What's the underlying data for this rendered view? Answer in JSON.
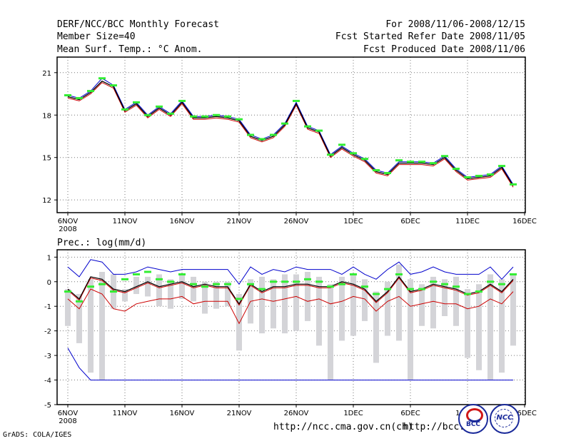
{
  "header": {
    "title": "DERF/NCC/BCC Monthly Forecast",
    "member_size": "Member Size=40",
    "variable": "Mean Surf. Temp.: °C Anom.",
    "period": "For 2008/11/06-2008/12/15",
    "started": "Fcst Started Refer Date 2008/11/05",
    "produced": "Fcst Produced Date 2008/11/06"
  },
  "footer": {
    "grads": "GrADS: COLA/IGES",
    "url1": "http://ncc.cma.gov.cn(ch)",
    "url2": "http://bcc.",
    "logo_bcc": "BCC",
    "logo_ncc": "NCC"
  },
  "colors": {
    "ensemble": "#0000cc",
    "red": "#cc0000",
    "black": "#000000",
    "green": "#33ee33",
    "bar": "#d4d4d8"
  },
  "chart_data": [
    {
      "type": "line",
      "title": "Mean Surf. Temp.: °C Anom.",
      "xlabel": "",
      "ylabel": "",
      "x": [
        "6NOV",
        "7NOV",
        "8NOV",
        "9NOV",
        "10NOV",
        "11NOV",
        "12NOV",
        "13NOV",
        "14NOV",
        "15NOV",
        "16NOV",
        "17NOV",
        "18NOV",
        "19NOV",
        "20NOV",
        "21NOV",
        "22NOV",
        "23NOV",
        "24NOV",
        "25NOV",
        "26NOV",
        "27NOV",
        "28NOV",
        "29NOV",
        "30NOV",
        "1DEC",
        "2DEC",
        "3DEC",
        "4DEC",
        "5DEC",
        "6DEC",
        "7DEC",
        "8DEC",
        "9DEC",
        "10DEC",
        "11DEC",
        "12DEC",
        "13DEC",
        "14DEC",
        "15DEC"
      ],
      "xticks": [
        "6NOV",
        "11NOV",
        "16NOV",
        "21NOV",
        "26NOV",
        "1DEC",
        "6DEC",
        "11DEC",
        "16DEC"
      ],
      "xtick_year": "2008",
      "yticks": [
        12,
        15,
        18,
        21
      ],
      "ylim": [
        11.1,
        22.1
      ],
      "series": [
        {
          "name": "ensemble mean",
          "values": [
            19.3,
            19.1,
            19.6,
            20.4,
            20.0,
            18.3,
            18.8,
            17.9,
            18.5,
            18.0,
            18.9,
            17.8,
            17.8,
            17.9,
            17.8,
            17.6,
            16.5,
            16.2,
            16.5,
            17.3,
            18.8,
            17.1,
            16.8,
            15.1,
            15.7,
            15.2,
            14.8,
            14.0,
            13.8,
            14.6,
            14.6,
            14.6,
            14.5,
            15.0,
            14.1,
            13.5,
            13.6,
            13.7,
            14.3,
            13.0
          ]
        },
        {
          "name": "ensemble spread",
          "values": [
            19.2,
            19.0,
            19.5,
            20.3,
            19.9,
            18.2,
            18.7,
            17.8,
            18.4,
            17.9,
            18.8,
            17.7,
            17.7,
            17.8,
            17.7,
            17.5,
            16.4,
            16.1,
            16.4,
            17.2,
            18.7,
            17.0,
            16.7,
            15.0,
            15.6,
            15.1,
            14.7,
            13.9,
            13.7,
            14.5,
            14.5,
            14.5,
            14.4,
            14.9,
            14.0,
            13.4,
            13.5,
            13.6,
            14.2,
            12.9
          ]
        },
        {
          "name": "observed",
          "values": [
            19.4,
            19.2,
            19.7,
            20.6,
            20.1,
            18.4,
            18.9,
            18.0,
            18.6,
            18.1,
            19.0,
            17.9,
            17.9,
            18.0,
            17.9,
            17.7,
            16.6,
            16.3,
            16.6,
            17.4,
            18.9,
            17.2,
            16.9,
            15.2,
            15.8,
            15.3,
            14.9,
            14.1,
            13.9,
            14.7,
            14.7,
            14.7,
            14.6,
            15.1,
            14.2,
            13.6,
            13.7,
            13.8,
            14.4,
            13.1
          ]
        }
      ],
      "markers": [
        19.4,
        19.2,
        19.7,
        20.6,
        20.1,
        18.4,
        18.9,
        18.0,
        18.6,
        18.1,
        19.0,
        17.9,
        17.9,
        18.0,
        17.9,
        17.7,
        16.6,
        16.3,
        16.6,
        17.4,
        19.0,
        17.2,
        16.9,
        15.2,
        15.9,
        15.3,
        14.9,
        14.1,
        13.9,
        14.8,
        14.7,
        14.7,
        14.6,
        15.1,
        14.2,
        13.6,
        13.7,
        13.8,
        14.4,
        13.1
      ]
    },
    {
      "type": "line",
      "title": "Prec.: log(mm/d)",
      "xlabel": "",
      "ylabel": "",
      "x": [
        "6NOV",
        "7NOV",
        "8NOV",
        "9NOV",
        "10NOV",
        "11NOV",
        "12NOV",
        "13NOV",
        "14NOV",
        "15NOV",
        "16NOV",
        "17NOV",
        "18NOV",
        "19NOV",
        "20NOV",
        "21NOV",
        "22NOV",
        "23NOV",
        "24NOV",
        "25NOV",
        "26NOV",
        "27NOV",
        "28NOV",
        "29NOV",
        "30NOV",
        "1DEC",
        "2DEC",
        "3DEC",
        "4DEC",
        "5DEC",
        "6DEC",
        "7DEC",
        "8DEC",
        "9DEC",
        "10DEC",
        "11DEC",
        "12DEC",
        "13DEC",
        "14DEC",
        "15DEC"
      ],
      "xticks": [
        "6NOV",
        "11NOV",
        "16NOV",
        "21NOV",
        "26NOV",
        "1DEC",
        "6DEC",
        "11DEC",
        "16DEC"
      ],
      "xtick_year": "2008",
      "yticks": [
        -5,
        -4,
        -3,
        -2,
        -1,
        0,
        1
      ],
      "ylim": [
        -5,
        1.3
      ],
      "bars": {
        "top": [
          -0.3,
          -0.5,
          0.1,
          0.4,
          0.3,
          -0.3,
          0.2,
          0.2,
          0.3,
          0.1,
          0.3,
          0.2,
          0.0,
          0.0,
          0.0,
          -0.5,
          0.1,
          0.2,
          0.1,
          0.3,
          0.3,
          0.4,
          0.2,
          -0.1,
          0.2,
          0.3,
          0.1,
          -0.4,
          0.0,
          0.7,
          0.1,
          -0.1,
          0.2,
          0.1,
          0.2,
          -0.3,
          -0.1,
          0.3,
          0.1,
          0.3
        ],
        "bottom": [
          -1.8,
          -2.5,
          -3.7,
          -4.0,
          -1.1,
          -0.8,
          -0.5,
          -0.6,
          -1.0,
          -1.1,
          -0.7,
          -0.8,
          -1.3,
          -1.1,
          -1.0,
          -2.8,
          -1.7,
          -2.1,
          -1.9,
          -2.1,
          -2.0,
          -1.6,
          -2.6,
          -4.0,
          -2.4,
          -2.2,
          -1.6,
          -3.3,
          -2.2,
          -2.4,
          -4.0,
          -1.8,
          -1.9,
          -1.4,
          -1.8,
          -3.1,
          -3.6,
          -4.0,
          -3.7,
          -2.6
        ]
      },
      "series": [
        {
          "name": "max",
          "values": [
            0.6,
            0.2,
            0.9,
            0.8,
            0.3,
            0.3,
            0.4,
            0.6,
            0.5,
            0.4,
            0.5,
            0.5,
            0.5,
            0.5,
            0.5,
            -0.1,
            0.6,
            0.3,
            0.5,
            0.4,
            0.6,
            0.5,
            0.5,
            0.5,
            0.3,
            0.6,
            0.3,
            0.1,
            0.5,
            0.8,
            0.3,
            0.4,
            0.6,
            0.4,
            0.3,
            0.3,
            0.3,
            0.6,
            0.1,
            0.6
          ]
        },
        {
          "name": "min",
          "values": [
            -2.7,
            -3.5,
            -4.0,
            -4.0,
            -4.0,
            -4.0,
            -4.0,
            -4.0,
            -4.0,
            -4.0,
            -4.0,
            -4.0,
            -4.0,
            -4.0,
            -4.0,
            -4.0,
            -4.0,
            -4.0,
            -4.0,
            -4.0,
            -4.0,
            -4.0,
            -4.0,
            -4.0,
            -4.0,
            -4.0,
            -4.0,
            -4.0,
            -4.0,
            -4.0,
            -4.0,
            -4.0,
            -4.0,
            -4.0,
            -4.0,
            -4.0,
            -4.0,
            -4.0,
            -4.0,
            -4.0
          ]
        },
        {
          "name": "lower",
          "values": [
            -0.7,
            -1.1,
            -0.3,
            -0.5,
            -1.1,
            -1.2,
            -0.9,
            -0.8,
            -0.7,
            -0.7,
            -0.6,
            -0.9,
            -0.8,
            -0.8,
            -0.8,
            -1.7,
            -0.8,
            -0.7,
            -0.8,
            -0.7,
            -0.6,
            -0.8,
            -0.7,
            -0.9,
            -0.8,
            -0.6,
            -0.7,
            -1.2,
            -0.8,
            -0.6,
            -1.0,
            -0.9,
            -0.8,
            -0.9,
            -0.9,
            -1.1,
            -1.0,
            -0.7,
            -0.9,
            -0.4
          ]
        },
        {
          "name": "mean",
          "values": [
            -0.3,
            -0.7,
            0.2,
            0.1,
            -0.3,
            -0.4,
            -0.2,
            0.0,
            -0.2,
            -0.1,
            0.0,
            -0.2,
            -0.1,
            -0.2,
            -0.2,
            -0.9,
            -0.1,
            -0.4,
            -0.2,
            -0.2,
            -0.1,
            -0.1,
            -0.2,
            -0.2,
            0.0,
            -0.1,
            -0.3,
            -0.8,
            -0.4,
            0.2,
            -0.4,
            -0.3,
            -0.1,
            -0.2,
            -0.3,
            -0.5,
            -0.4,
            -0.1,
            -0.4,
            0.1
          ]
        },
        {
          "name": "median",
          "values": [
            -0.35,
            -0.75,
            0.15,
            0.05,
            -0.35,
            -0.45,
            -0.25,
            -0.05,
            -0.25,
            -0.15,
            -0.05,
            -0.25,
            -0.15,
            -0.25,
            -0.25,
            -0.95,
            -0.15,
            -0.45,
            -0.25,
            -0.25,
            -0.15,
            -0.15,
            -0.25,
            -0.25,
            -0.05,
            -0.15,
            -0.35,
            -0.85,
            -0.45,
            0.15,
            -0.45,
            -0.35,
            -0.15,
            -0.25,
            -0.35,
            -0.55,
            -0.45,
            -0.15,
            -0.45,
            0.05
          ]
        }
      ],
      "markers": [
        -0.4,
        -0.8,
        -0.2,
        -0.1,
        -0.4,
        0.1,
        0.3,
        0.4,
        0.1,
        0.0,
        0.3,
        -0.1,
        -0.2,
        -0.1,
        -0.1,
        -0.7,
        -0.1,
        -0.3,
        0.0,
        0.0,
        0.0,
        0.1,
        0.0,
        -0.2,
        -0.1,
        0.3,
        -0.2,
        -0.5,
        -0.3,
        0.3,
        -0.3,
        -0.3,
        0.0,
        -0.1,
        -0.2,
        -0.5,
        -0.4,
        0.0,
        -0.1,
        0.3
      ]
    }
  ]
}
